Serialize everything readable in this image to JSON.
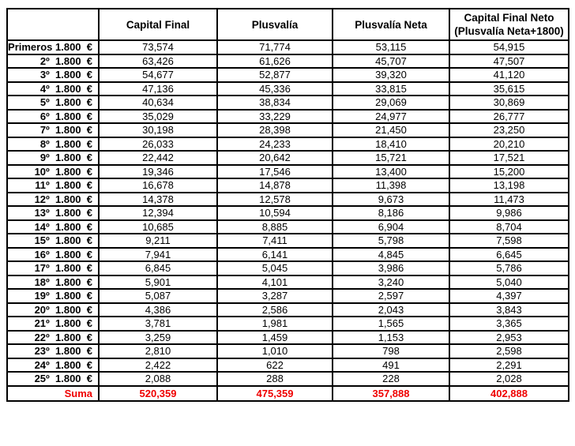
{
  "colors": {
    "total_text": "#ef0000",
    "border": "#000000",
    "body_text": "#000000"
  },
  "table": {
    "columns": [
      "Capital Final",
      "Plusvalía",
      "Plusvalía Neta",
      "Capital Final Neto\n(Plusvalía Neta+1800)"
    ],
    "rows": [
      {
        "label": "Primeros 1.800  €",
        "values": [
          "73,574",
          "71,774",
          "53,115",
          "54,915"
        ]
      },
      {
        "label": "2º  1.800  €",
        "values": [
          "63,426",
          "61,626",
          "45,707",
          "47,507"
        ]
      },
      {
        "label": "3º  1.800  €",
        "values": [
          "54,677",
          "52,877",
          "39,320",
          "41,120"
        ]
      },
      {
        "label": "4º  1.800  €",
        "values": [
          "47,136",
          "45,336",
          "33,815",
          "35,615"
        ]
      },
      {
        "label": "5º  1.800  €",
        "values": [
          "40,634",
          "38,834",
          "29,069",
          "30,869"
        ]
      },
      {
        "label": "6º  1.800  €",
        "values": [
          "35,029",
          "33,229",
          "24,977",
          "26,777"
        ]
      },
      {
        "label": "7º  1.800  €",
        "values": [
          "30,198",
          "28,398",
          "21,450",
          "23,250"
        ]
      },
      {
        "label": "8º  1.800  €",
        "values": [
          "26,033",
          "24,233",
          "18,410",
          "20,210"
        ]
      },
      {
        "label": "9º  1.800  €",
        "values": [
          "22,442",
          "20,642",
          "15,721",
          "17,521"
        ]
      },
      {
        "label": "10º  1.800  €",
        "values": [
          "19,346",
          "17,546",
          "13,400",
          "15,200"
        ]
      },
      {
        "label": "11º  1.800  €",
        "values": [
          "16,678",
          "14,878",
          "11,398",
          "13,198"
        ]
      },
      {
        "label": "12º  1.800  €",
        "values": [
          "14,378",
          "12,578",
          "9,673",
          "11,473"
        ]
      },
      {
        "label": "13º  1.800  €",
        "values": [
          "12,394",
          "10,594",
          "8,186",
          "9,986"
        ]
      },
      {
        "label": "14º  1.800  €",
        "values": [
          "10,685",
          "8,885",
          "6,904",
          "8,704"
        ]
      },
      {
        "label": "15º  1.800  €",
        "values": [
          "9,211",
          "7,411",
          "5,798",
          "7,598"
        ]
      },
      {
        "label": "16º  1.800  €",
        "values": [
          "7,941",
          "6,141",
          "4,845",
          "6,645"
        ]
      },
      {
        "label": "17º  1.800  €",
        "values": [
          "6,845",
          "5,045",
          "3,986",
          "5,786"
        ]
      },
      {
        "label": "18º  1.800  €",
        "values": [
          "5,901",
          "4,101",
          "3,240",
          "5,040"
        ]
      },
      {
        "label": "19º  1.800  €",
        "values": [
          "5,087",
          "3,287",
          "2,597",
          "4,397"
        ]
      },
      {
        "label": "20º  1.800  €",
        "values": [
          "4,386",
          "2,586",
          "2,043",
          "3,843"
        ]
      },
      {
        "label": "21º  1.800  €",
        "values": [
          "3,781",
          "1,981",
          "1,565",
          "3,365"
        ]
      },
      {
        "label": "22º  1.800  €",
        "values": [
          "3,259",
          "1,459",
          "1,153",
          "2,953"
        ]
      },
      {
        "label": "23º  1.800  €",
        "values": [
          "2,810",
          "1,010",
          "798",
          "2,598"
        ]
      },
      {
        "label": "24º  1.800  €",
        "values": [
          "2,422",
          "622",
          "491",
          "2,291"
        ]
      },
      {
        "label": "25º  1.800  €",
        "values": [
          "2,088",
          "288",
          "228",
          "2,028"
        ]
      }
    ],
    "footer": {
      "label": "Suma",
      "values": [
        "520,359",
        "475,359",
        "357,888",
        "402,888"
      ]
    }
  }
}
